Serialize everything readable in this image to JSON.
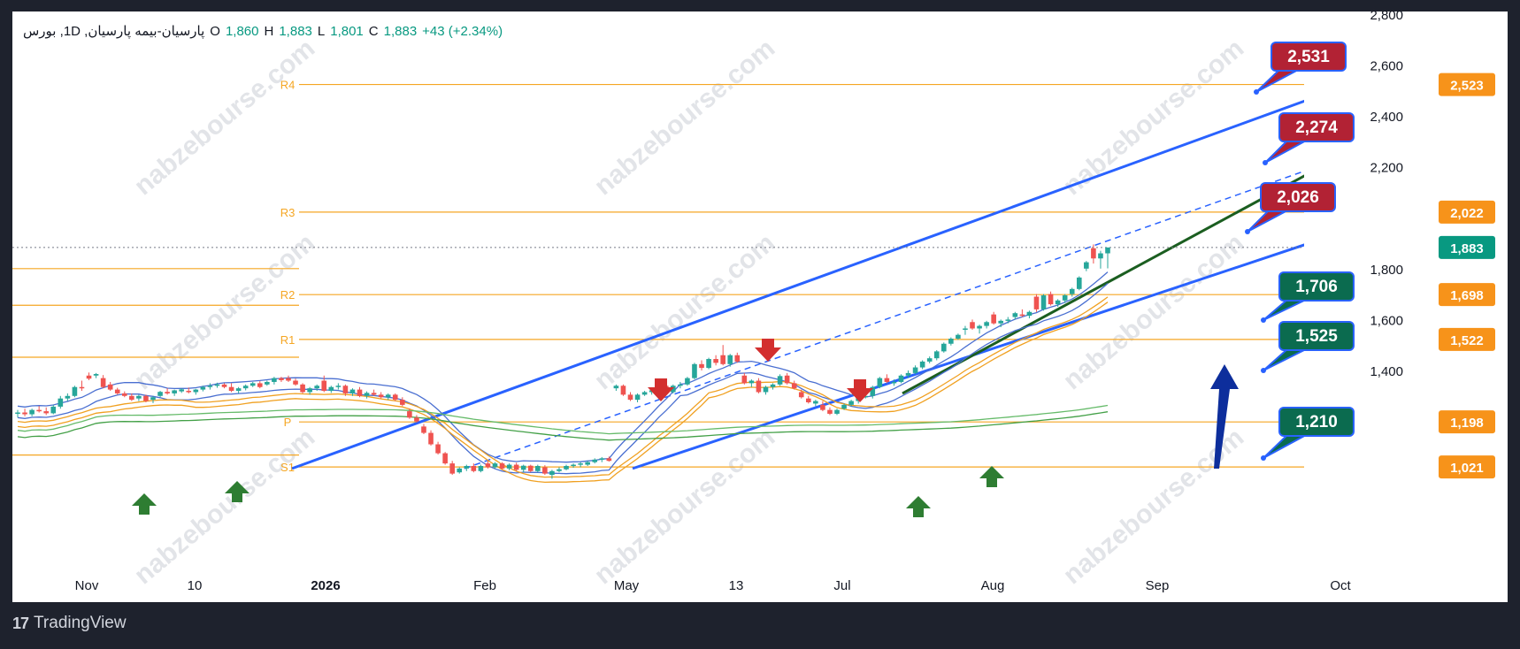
{
  "header": {
    "symbol": "پارسیان-بیمه پارسیان, 1D, بورس",
    "open_label": "O",
    "open": "1,860",
    "high_label": "H",
    "high": "1,883",
    "low_label": "L",
    "low": "1,801",
    "close_label": "C",
    "close": "1,883",
    "change": "+43 (+2.34%)"
  },
  "footer": {
    "brand": "TradingView"
  },
  "watermark": "nabzebourse.com",
  "colors": {
    "background": "#ffffff",
    "frame": "#1e222d",
    "up": "#26a69a",
    "down": "#ef5350",
    "pivot": "#f5a623",
    "channel": "#2962ff",
    "trend": "#1b5e20",
    "red_label": "#b22234",
    "green_label": "#0b6b4f",
    "arrow_red": "#d32f2f",
    "arrow_green": "#2e7d32",
    "arrow_blue": "#0d2e9c"
  },
  "chart_data": {
    "type": "candlestick",
    "title": "",
    "xlabel": "",
    "ylabel": "",
    "x_ticks": [
      "Nov",
      "10",
      "2026",
      "Feb",
      "May",
      "13",
      "Jul",
      "Aug",
      "Sep",
      "Oct"
    ],
    "y_ticks": [
      1400,
      1600,
      1800,
      2000,
      2200,
      2400,
      2600,
      2800
    ],
    "y_tick_labels": [
      "1,400",
      "1,600",
      "1,800",
      "",
      "2,200",
      "2,400",
      "2,600",
      "2,800"
    ],
    "ylim": [
      1000,
      2800
    ],
    "grid": false,
    "pivot_levels": [
      {
        "name": "R4",
        "value": 2523,
        "label": "2,523"
      },
      {
        "name": "R3",
        "value": 2022,
        "label": "2,022"
      },
      {
        "name": "R2",
        "value": 1698,
        "label": "1,698"
      },
      {
        "name": "R1",
        "value": 1522,
        "label": "1,522"
      },
      {
        "name": "P",
        "value": 1198,
        "label": "1,198"
      },
      {
        "name": "S1",
        "value": 1021,
        "label": "1,021"
      }
    ],
    "last_price": {
      "value": 1883,
      "label": "1,883"
    },
    "target_labels": [
      {
        "text": "2,531",
        "color": "red"
      },
      {
        "text": "2,274",
        "color": "red"
      },
      {
        "text": "2,026",
        "color": "red"
      },
      {
        "text": "1,706",
        "color": "green"
      },
      {
        "text": "1,525",
        "color": "green"
      },
      {
        "text": "1,210",
        "color": "green"
      }
    ],
    "candles": [
      {
        "o": 1230,
        "h": 1245,
        "l": 1215,
        "c": 1235
      },
      {
        "o": 1235,
        "h": 1250,
        "l": 1220,
        "c": 1228
      },
      {
        "o": 1228,
        "h": 1250,
        "l": 1220,
        "c": 1245
      },
      {
        "o": 1245,
        "h": 1260,
        "l": 1235,
        "c": 1240
      },
      {
        "o": 1240,
        "h": 1255,
        "l": 1225,
        "c": 1232
      },
      {
        "o": 1232,
        "h": 1265,
        "l": 1228,
        "c": 1258
      },
      {
        "o": 1258,
        "h": 1300,
        "l": 1250,
        "c": 1290
      },
      {
        "o": 1290,
        "h": 1310,
        "l": 1280,
        "c": 1300
      },
      {
        "o": 1300,
        "h": 1340,
        "l": 1295,
        "c": 1335
      },
      {
        "o": 1335,
        "h": 1360,
        "l": 1320,
        "c": 1330
      },
      {
        "o": 1380,
        "h": 1392,
        "l": 1362,
        "c": 1368
      },
      {
        "o": 1380,
        "h": 1390,
        "l": 1370,
        "c": 1386
      },
      {
        "o": 1370,
        "h": 1382,
        "l": 1330,
        "c": 1335
      },
      {
        "o": 1345,
        "h": 1355,
        "l": 1320,
        "c": 1325
      },
      {
        "o": 1325,
        "h": 1332,
        "l": 1305,
        "c": 1310
      },
      {
        "o": 1310,
        "h": 1318,
        "l": 1295,
        "c": 1300
      },
      {
        "o": 1300,
        "h": 1310,
        "l": 1280,
        "c": 1285
      },
      {
        "o": 1290,
        "h": 1305,
        "l": 1280,
        "c": 1300
      },
      {
        "o": 1300,
        "h": 1305,
        "l": 1275,
        "c": 1280
      },
      {
        "o": 1285,
        "h": 1300,
        "l": 1272,
        "c": 1295
      },
      {
        "o": 1300,
        "h": 1320,
        "l": 1295,
        "c": 1316
      },
      {
        "o": 1316,
        "h": 1330,
        "l": 1305,
        "c": 1310
      },
      {
        "o": 1310,
        "h": 1325,
        "l": 1300,
        "c": 1322
      },
      {
        "o": 1318,
        "h": 1330,
        "l": 1312,
        "c": 1326
      },
      {
        "o": 1320,
        "h": 1333,
        "l": 1310,
        "c": 1315
      },
      {
        "o": 1315,
        "h": 1328,
        "l": 1305,
        "c": 1325
      },
      {
        "o": 1325,
        "h": 1340,
        "l": 1318,
        "c": 1335
      },
      {
        "o": 1335,
        "h": 1350,
        "l": 1325,
        "c": 1340
      },
      {
        "o": 1340,
        "h": 1352,
        "l": 1332,
        "c": 1345
      },
      {
        "o": 1345,
        "h": 1350,
        "l": 1330,
        "c": 1335
      },
      {
        "o": 1335,
        "h": 1350,
        "l": 1315,
        "c": 1320
      },
      {
        "o": 1320,
        "h": 1335,
        "l": 1310,
        "c": 1330
      },
      {
        "o": 1330,
        "h": 1345,
        "l": 1322,
        "c": 1340
      },
      {
        "o": 1340,
        "h": 1355,
        "l": 1335,
        "c": 1350
      },
      {
        "o": 1350,
        "h": 1358,
        "l": 1330,
        "c": 1335
      },
      {
        "o": 1345,
        "h": 1360,
        "l": 1340,
        "c": 1355
      },
      {
        "o": 1355,
        "h": 1375,
        "l": 1345,
        "c": 1370
      },
      {
        "o": 1370,
        "h": 1375,
        "l": 1355,
        "c": 1362
      },
      {
        "o": 1370,
        "h": 1380,
        "l": 1355,
        "c": 1360
      },
      {
        "o": 1360,
        "h": 1368,
        "l": 1340,
        "c": 1345
      },
      {
        "o": 1345,
        "h": 1350,
        "l": 1310,
        "c": 1315
      },
      {
        "o": 1315,
        "h": 1335,
        "l": 1305,
        "c": 1330
      },
      {
        "o": 1330,
        "h": 1345,
        "l": 1320,
        "c": 1340
      },
      {
        "o": 1360,
        "h": 1380,
        "l": 1315,
        "c": 1320
      },
      {
        "o": 1320,
        "h": 1340,
        "l": 1312,
        "c": 1335
      },
      {
        "o": 1335,
        "h": 1350,
        "l": 1325,
        "c": 1340
      },
      {
        "o": 1340,
        "h": 1345,
        "l": 1300,
        "c": 1310
      },
      {
        "o": 1310,
        "h": 1330,
        "l": 1300,
        "c": 1325
      },
      {
        "o": 1325,
        "h": 1335,
        "l": 1295,
        "c": 1300
      },
      {
        "o": 1300,
        "h": 1318,
        "l": 1290,
        "c": 1312
      },
      {
        "o": 1312,
        "h": 1325,
        "l": 1300,
        "c": 1305
      },
      {
        "o": 1305,
        "h": 1315,
        "l": 1290,
        "c": 1295
      },
      {
        "o": 1295,
        "h": 1310,
        "l": 1285,
        "c": 1305
      },
      {
        "o": 1305,
        "h": 1310,
        "l": 1280,
        "c": 1285
      },
      {
        "o": 1285,
        "h": 1295,
        "l": 1260,
        "c": 1265
      },
      {
        "o": 1240,
        "h": 1250,
        "l": 1210,
        "c": 1215
      },
      {
        "o": 1215,
        "h": 1225,
        "l": 1195,
        "c": 1200
      },
      {
        "o": 1180,
        "h": 1190,
        "l": 1150,
        "c": 1155
      },
      {
        "o": 1155,
        "h": 1165,
        "l": 1105,
        "c": 1110
      },
      {
        "o": 1110,
        "h": 1120,
        "l": 1070,
        "c": 1075
      },
      {
        "o": 1075,
        "h": 1080,
        "l": 1030,
        "c": 1035
      },
      {
        "o": 1035,
        "h": 1045,
        "l": 990,
        "c": 995
      },
      {
        "o": 1000,
        "h": 1020,
        "l": 995,
        "c": 1015
      },
      {
        "o": 1015,
        "h": 1030,
        "l": 1005,
        "c": 1025
      },
      {
        "o": 1025,
        "h": 1035,
        "l": 1000,
        "c": 1005
      },
      {
        "o": 1005,
        "h": 1030,
        "l": 1000,
        "c": 1025
      },
      {
        "o": 1035,
        "h": 1045,
        "l": 1015,
        "c": 1020
      },
      {
        "o": 1020,
        "h": 1040,
        "l": 1015,
        "c": 1035
      },
      {
        "o": 1035,
        "h": 1040,
        "l": 1010,
        "c": 1015
      },
      {
        "o": 1015,
        "h": 1035,
        "l": 1008,
        "c": 1030
      },
      {
        "o": 1030,
        "h": 1038,
        "l": 1005,
        "c": 1010
      },
      {
        "o": 1010,
        "h": 1030,
        "l": 1000,
        "c": 1026
      },
      {
        "o": 1026,
        "h": 1030,
        "l": 1000,
        "c": 1005
      },
      {
        "o": 1005,
        "h": 1030,
        "l": 1000,
        "c": 1025
      },
      {
        "o": 1020,
        "h": 1028,
        "l": 990,
        "c": 995
      },
      {
        "o": 990,
        "h": 1010,
        "l": 975,
        "c": 1005
      },
      {
        "o": 1005,
        "h": 1020,
        "l": 1000,
        "c": 1012
      },
      {
        "o": 1012,
        "h": 1030,
        "l": 1008,
        "c": 1025
      },
      {
        "o": 1025,
        "h": 1035,
        "l": 1018,
        "c": 1030
      },
      {
        "o": 1030,
        "h": 1040,
        "l": 1020,
        "c": 1035
      },
      {
        "o": 1030,
        "h": 1045,
        "l": 1025,
        "c": 1040
      },
      {
        "o": 1040,
        "h": 1055,
        "l": 1035,
        "c": 1050
      },
      {
        "o": 1050,
        "h": 1060,
        "l": 1040,
        "c": 1055
      },
      {
        "o": 1055,
        "h": 1062,
        "l": 1042,
        "c": 1045
      },
      {
        "o": 1330,
        "h": 1345,
        "l": 1320,
        "c": 1340
      },
      {
        "o": 1340,
        "h": 1345,
        "l": 1300,
        "c": 1305
      },
      {
        "o": 1305,
        "h": 1315,
        "l": 1280,
        "c": 1285
      },
      {
        "o": 1285,
        "h": 1310,
        "l": 1275,
        "c": 1305
      },
      {
        "o": 1305,
        "h": 1320,
        "l": 1300,
        "c": 1315
      },
      {
        "o": 1315,
        "h": 1330,
        "l": 1305,
        "c": 1322
      },
      {
        "o": 1322,
        "h": 1345,
        "l": 1318,
        "c": 1340
      },
      {
        "o": 1340,
        "h": 1350,
        "l": 1310,
        "c": 1315
      },
      {
        "o": 1315,
        "h": 1345,
        "l": 1310,
        "c": 1340
      },
      {
        "o": 1340,
        "h": 1355,
        "l": 1330,
        "c": 1345
      },
      {
        "o": 1345,
        "h": 1375,
        "l": 1340,
        "c": 1370
      },
      {
        "o": 1370,
        "h": 1430,
        "l": 1365,
        "c": 1425
      },
      {
        "o": 1425,
        "h": 1440,
        "l": 1400,
        "c": 1410
      },
      {
        "o": 1410,
        "h": 1450,
        "l": 1405,
        "c": 1445
      },
      {
        "o": 1445,
        "h": 1460,
        "l": 1420,
        "c": 1430
      },
      {
        "o": 1460,
        "h": 1500,
        "l": 1420,
        "c": 1425
      },
      {
        "o": 1425,
        "h": 1465,
        "l": 1415,
        "c": 1460
      },
      {
        "o": 1460,
        "h": 1470,
        "l": 1430,
        "c": 1435
      },
      {
        "o": 1380,
        "h": 1390,
        "l": 1345,
        "c": 1350
      },
      {
        "o": 1350,
        "h": 1365,
        "l": 1335,
        "c": 1360
      },
      {
        "o": 1360,
        "h": 1370,
        "l": 1310,
        "c": 1315
      },
      {
        "o": 1315,
        "h": 1340,
        "l": 1305,
        "c": 1335
      },
      {
        "o": 1335,
        "h": 1350,
        "l": 1325,
        "c": 1345
      },
      {
        "o": 1345,
        "h": 1385,
        "l": 1340,
        "c": 1378
      },
      {
        "o": 1380,
        "h": 1390,
        "l": 1345,
        "c": 1350
      },
      {
        "o": 1350,
        "h": 1360,
        "l": 1325,
        "c": 1330
      },
      {
        "o": 1315,
        "h": 1325,
        "l": 1290,
        "c": 1295
      },
      {
        "o": 1290,
        "h": 1300,
        "l": 1270,
        "c": 1275
      },
      {
        "o": 1270,
        "h": 1285,
        "l": 1260,
        "c": 1280
      },
      {
        "o": 1265,
        "h": 1280,
        "l": 1240,
        "c": 1245
      },
      {
        "o": 1245,
        "h": 1255,
        "l": 1225,
        "c": 1230
      },
      {
        "o": 1230,
        "h": 1250,
        "l": 1225,
        "c": 1245
      },
      {
        "o": 1250,
        "h": 1270,
        "l": 1245,
        "c": 1265
      },
      {
        "o": 1265,
        "h": 1285,
        "l": 1260,
        "c": 1280
      },
      {
        "o": 1280,
        "h": 1300,
        "l": 1270,
        "c": 1295
      },
      {
        "o": 1295,
        "h": 1310,
        "l": 1290,
        "c": 1300
      },
      {
        "o": 1300,
        "h": 1340,
        "l": 1290,
        "c": 1335
      },
      {
        "o": 1335,
        "h": 1375,
        "l": 1330,
        "c": 1370
      },
      {
        "o": 1370,
        "h": 1385,
        "l": 1350,
        "c": 1355
      },
      {
        "o": 1350,
        "h": 1365,
        "l": 1340,
        "c": 1355
      },
      {
        "o": 1355,
        "h": 1385,
        "l": 1350,
        "c": 1380
      },
      {
        "o": 1380,
        "h": 1400,
        "l": 1370,
        "c": 1390
      },
      {
        "o": 1390,
        "h": 1420,
        "l": 1385,
        "c": 1412
      },
      {
        "o": 1412,
        "h": 1440,
        "l": 1405,
        "c": 1435
      },
      {
        "o": 1435,
        "h": 1455,
        "l": 1428,
        "c": 1448
      },
      {
        "o": 1448,
        "h": 1480,
        "l": 1440,
        "c": 1475
      },
      {
        "o": 1475,
        "h": 1510,
        "l": 1470,
        "c": 1505
      },
      {
        "o": 1505,
        "h": 1530,
        "l": 1498,
        "c": 1525
      },
      {
        "o": 1525,
        "h": 1545,
        "l": 1520,
        "c": 1540
      },
      {
        "o": 1560,
        "h": 1575,
        "l": 1540,
        "c": 1565
      },
      {
        "o": 1590,
        "h": 1600,
        "l": 1560,
        "c": 1565
      },
      {
        "o": 1565,
        "h": 1580,
        "l": 1545,
        "c": 1575
      },
      {
        "o": 1575,
        "h": 1595,
        "l": 1565,
        "c": 1590
      },
      {
        "o": 1620,
        "h": 1630,
        "l": 1580,
        "c": 1585
      },
      {
        "o": 1585,
        "h": 1600,
        "l": 1570,
        "c": 1595
      },
      {
        "o": 1595,
        "h": 1610,
        "l": 1585,
        "c": 1600
      },
      {
        "o": 1610,
        "h": 1630,
        "l": 1600,
        "c": 1625
      },
      {
        "o": 1620,
        "h": 1640,
        "l": 1610,
        "c": 1615
      },
      {
        "o": 1615,
        "h": 1635,
        "l": 1605,
        "c": 1630
      },
      {
        "o": 1690,
        "h": 1700,
        "l": 1630,
        "c": 1640
      },
      {
        "o": 1640,
        "h": 1700,
        "l": 1635,
        "c": 1695
      },
      {
        "o": 1700,
        "h": 1710,
        "l": 1655,
        "c": 1660
      },
      {
        "o": 1660,
        "h": 1680,
        "l": 1650,
        "c": 1675
      },
      {
        "o": 1675,
        "h": 1700,
        "l": 1665,
        "c": 1695
      },
      {
        "o": 1700,
        "h": 1725,
        "l": 1690,
        "c": 1720
      },
      {
        "o": 1720,
        "h": 1770,
        "l": 1715,
        "c": 1765
      },
      {
        "o": 1800,
        "h": 1830,
        "l": 1790,
        "c": 1825
      },
      {
        "o": 1880,
        "h": 1895,
        "l": 1820,
        "c": 1840
      },
      {
        "o": 1840,
        "h": 1870,
        "l": 1800,
        "c": 1860
      },
      {
        "o": 1860,
        "h": 1883,
        "l": 1801,
        "c": 1883
      }
    ]
  }
}
